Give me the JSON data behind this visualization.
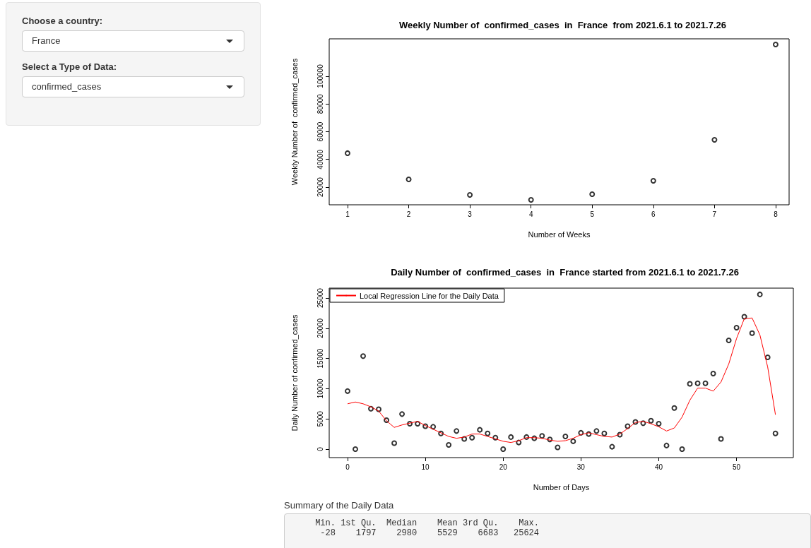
{
  "chart_data": [
    {
      "type": "other",
      "annotations": [
        "Choose a country:",
        "France",
        "Select a Type of Data:",
        "confirmed_cases"
      ]
    },
    {
      "type": "scatter",
      "title": "Weekly Number of  confirmed_cases  in  France  from 2021.6.1 to 2021.7.26",
      "xlabel": "Number of Weeks",
      "ylabel": "Weekly Number of  confirmed_cases",
      "x": [
        1,
        2,
        3,
        4,
        5,
        6,
        7,
        8
      ],
      "values": [
        44500,
        25600,
        14400,
        10800,
        14900,
        24600,
        54100,
        122900
      ],
      "color": "#000000",
      "marker": "circle",
      "xlim": [
        0.7,
        8.22
      ],
      "xticks": [
        1,
        2,
        3,
        4,
        5,
        6,
        7,
        8
      ],
      "ylim": [
        7260,
        127000
      ],
      "yticks": [
        20000,
        40000,
        60000,
        80000,
        100000
      ],
      "legend": false,
      "grid": false
    },
    {
      "type": "scatter",
      "title": "Daily Number of  confirmed_cases  in  France started from 2021.6.1 to 2021.7.26",
      "xlabel": "Number of Days",
      "ylabel": "Daily Number of confirmed_cases",
      "x": [
        0,
        1,
        2,
        3,
        4,
        5,
        6,
        7,
        8,
        9,
        10,
        11,
        12,
        13,
        14,
        15,
        16,
        17,
        18,
        19,
        20,
        21,
        22,
        23,
        24,
        25,
        26,
        27,
        28,
        29,
        30,
        31,
        32,
        33,
        34,
        35,
        36,
        37,
        38,
        39,
        40,
        41,
        42,
        43,
        44,
        45,
        46,
        47,
        48,
        49,
        50,
        51,
        52,
        53,
        54,
        55
      ],
      "series": [
        {
          "type": "scatter",
          "color": "#000000",
          "marker": "circle",
          "values": [
            9600,
            0,
            15400,
            6700,
            6600,
            4800,
            1000,
            5800,
            4200,
            4200,
            3800,
            3700,
            2600,
            700,
            3000,
            1700,
            1900,
            3200,
            2600,
            1900,
            0,
            2000,
            1100,
            2000,
            1800,
            2200,
            1600,
            300,
            2100,
            1300,
            2700,
            2500,
            3000,
            2600,
            400,
            2400,
            3800,
            4500,
            4300,
            4700,
            4200,
            600,
            6800,
            0,
            10800,
            10900,
            10900,
            12500,
            1700,
            18000,
            20100,
            21900,
            19200,
            25600,
            15200,
            2600
          ]
        },
        {
          "type": "line",
          "name": "Local Regression Line for the Daily Data",
          "color": "#ff0000",
          "marker": "none",
          "values": [
            7500,
            7800,
            7500,
            7000,
            6300,
            4700,
            3600,
            4000,
            4300,
            4600,
            3900,
            3300,
            2700,
            2100,
            1800,
            2000,
            2500,
            2500,
            2100,
            1700,
            1300,
            1100,
            1400,
            1900,
            1900,
            1800,
            1500,
            1300,
            1400,
            1800,
            2400,
            2700,
            2400,
            2100,
            2000,
            2500,
            3400,
            4400,
            4600,
            4200,
            3700,
            3000,
            3500,
            5300,
            8100,
            10100,
            10100,
            9600,
            11100,
            14100,
            18300,
            21600,
            21700,
            18900,
            13600,
            5700
          ]
        }
      ],
      "xlim": [
        -2.36,
        57.3
      ],
      "xticks": [
        0,
        10,
        20,
        30,
        40,
        50
      ],
      "ylim": [
        -1400,
        26640
      ],
      "yticks": [
        0,
        5000,
        10000,
        15000,
        20000,
        25000
      ],
      "legend": "top left",
      "grid": false
    },
    {
      "type": "other",
      "title": "Summary of the Daily Data",
      "annotations": [
        "Min. 1st Qu.  Median    Mean 3rd Qu.    Max.",
        "-28    1797    2980    5529    6683   25624"
      ]
    }
  ]
}
